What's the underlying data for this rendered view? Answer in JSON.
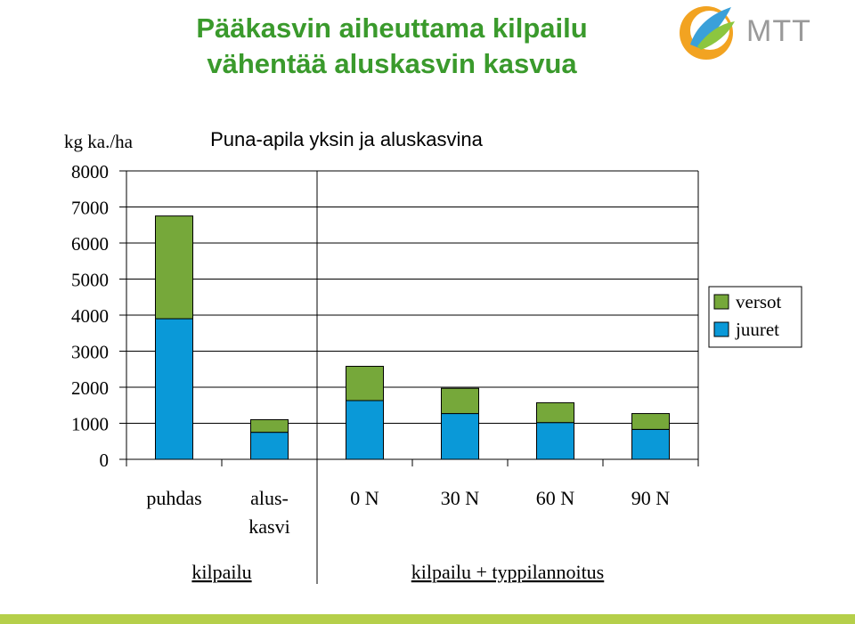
{
  "slide": {
    "title_line1": "Pääkasvin aiheuttama kilpailu",
    "title_line2": "vähentää aluskasvin kasvua",
    "logo_text": "MTT"
  },
  "colors": {
    "title": "#3a9a2c",
    "versot": "#76a83a",
    "juuret": "#0a99d8",
    "footer": "#b5cf4a"
  },
  "chart_data": {
    "type": "bar",
    "stacked": true,
    "title": "Puna-apila yksin ja aluskasvina",
    "ylabel": "kg ka./ha",
    "ylim": [
      0,
      8000
    ],
    "yticks": [
      0,
      1000,
      2000,
      3000,
      4000,
      5000,
      6000,
      7000,
      8000
    ],
    "grid": true,
    "legend_position": "right",
    "categories": [
      [
        "puhdas"
      ],
      [
        "alus-",
        "kasvi"
      ],
      [
        "0 N"
      ],
      [
        "30 N"
      ],
      [
        "60 N"
      ],
      [
        "90 N"
      ]
    ],
    "groups": [
      {
        "label": "kilpailu",
        "span": [
          0,
          1
        ]
      },
      {
        "label": "kilpailu + typpilannoitus",
        "span": [
          2,
          5
        ]
      }
    ],
    "series": [
      {
        "name": "juuret",
        "color": "#0a99d8",
        "values": [
          3900,
          750,
          1630,
          1270,
          1020,
          830
        ]
      },
      {
        "name": "versot",
        "color": "#76a83a",
        "values": [
          2850,
          350,
          950,
          700,
          550,
          440
        ]
      }
    ]
  }
}
